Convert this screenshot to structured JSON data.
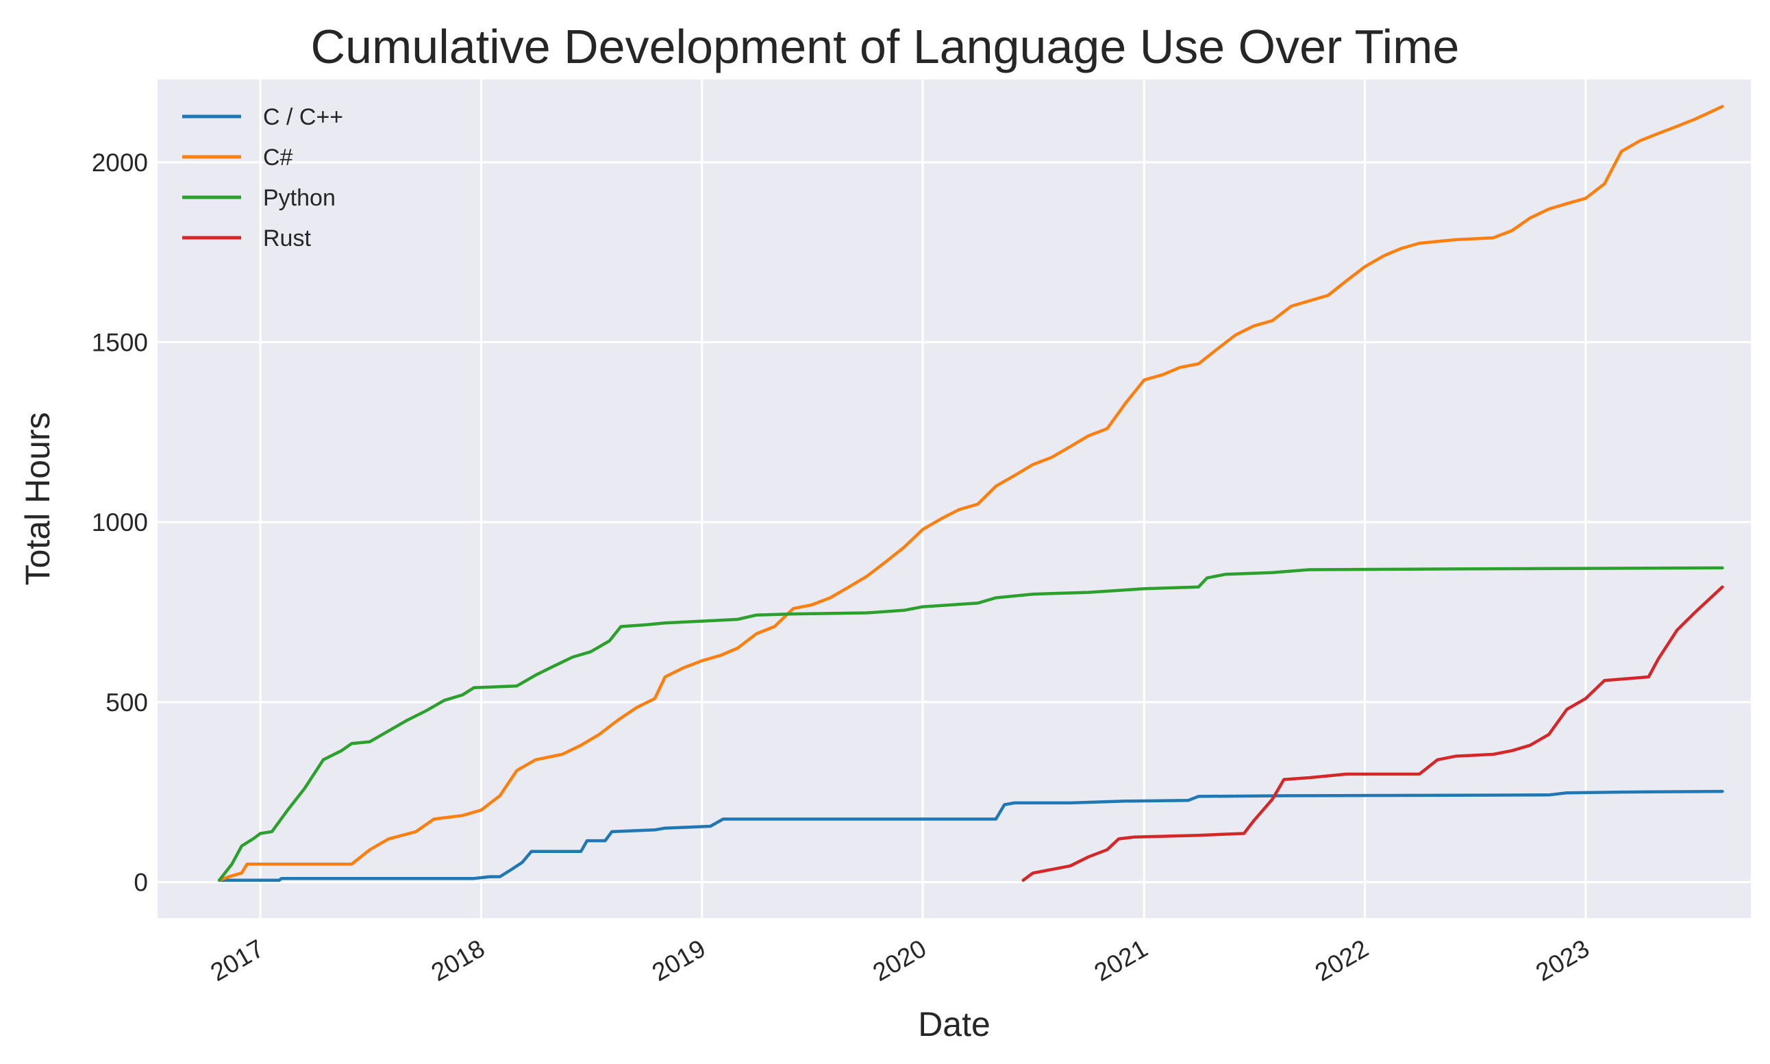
{
  "chart_data": {
    "type": "line",
    "title": "Cumulative Development of Language Use Over Time",
    "xlabel": "Date",
    "ylabel": "Total Hours",
    "xlim": [
      "2016-07-15",
      "2023-10-01"
    ],
    "ylim": [
      -100,
      2230
    ],
    "x_ticks": [
      "2017",
      "2018",
      "2019",
      "2020",
      "2021",
      "2022",
      "2023"
    ],
    "y_ticks": [
      0,
      500,
      1000,
      1500,
      2000
    ],
    "grid": true,
    "legend_position": "top-left",
    "background": "#eaeaf2",
    "series": [
      {
        "name": "C / C++",
        "color": "#1f77b4",
        "points": [
          [
            "2016-10-25",
            5
          ],
          [
            "2017-02-01",
            5
          ],
          [
            "2017-02-05",
            10
          ],
          [
            "2017-12-20",
            10
          ],
          [
            "2018-01-15",
            15
          ],
          [
            "2018-02-01",
            15
          ],
          [
            "2018-02-20",
            35
          ],
          [
            "2018-03-10",
            55
          ],
          [
            "2018-03-25",
            85
          ],
          [
            "2018-06-15",
            85
          ],
          [
            "2018-06-25",
            115
          ],
          [
            "2018-07-25",
            115
          ],
          [
            "2018-08-05",
            140
          ],
          [
            "2018-10-15",
            145
          ],
          [
            "2018-11-01",
            150
          ],
          [
            "2019-01-15",
            155
          ],
          [
            "2019-02-05",
            175
          ],
          [
            "2020-05-01",
            175
          ],
          [
            "2020-05-15",
            215
          ],
          [
            "2020-06-01",
            220
          ],
          [
            "2020-09-01",
            220
          ],
          [
            "2020-12-01",
            225
          ],
          [
            "2021-03-15",
            227
          ],
          [
            "2021-04-01",
            238
          ],
          [
            "2021-09-01",
            240
          ],
          [
            "2022-11-01",
            242
          ],
          [
            "2022-12-01",
            248
          ],
          [
            "2023-03-01",
            250
          ],
          [
            "2023-08-15",
            252
          ]
        ]
      },
      {
        "name": "C#",
        "color": "#ff7f0e",
        "points": [
          [
            "2016-10-25",
            5
          ],
          [
            "2016-11-10",
            15
          ],
          [
            "2016-12-01",
            25
          ],
          [
            "2016-12-10",
            50
          ],
          [
            "2017-06-01",
            50
          ],
          [
            "2017-07-01",
            90
          ],
          [
            "2017-08-01",
            120
          ],
          [
            "2017-09-15",
            140
          ],
          [
            "2017-10-15",
            175
          ],
          [
            "2017-12-01",
            185
          ],
          [
            "2018-01-01",
            200
          ],
          [
            "2018-02-01",
            240
          ],
          [
            "2018-03-01",
            310
          ],
          [
            "2018-04-01",
            340
          ],
          [
            "2018-05-15",
            355
          ],
          [
            "2018-06-15",
            380
          ],
          [
            "2018-07-15",
            410
          ],
          [
            "2018-08-15",
            450
          ],
          [
            "2018-09-15",
            485
          ],
          [
            "2018-10-15",
            510
          ],
          [
            "2018-11-01",
            570
          ],
          [
            "2018-12-01",
            595
          ],
          [
            "2019-01-01",
            615
          ],
          [
            "2019-02-01",
            630
          ],
          [
            "2019-03-01",
            650
          ],
          [
            "2019-04-01",
            690
          ],
          [
            "2019-05-01",
            710
          ],
          [
            "2019-06-01",
            760
          ],
          [
            "2019-07-01",
            770
          ],
          [
            "2019-08-01",
            790
          ],
          [
            "2019-09-01",
            820
          ],
          [
            "2019-10-01",
            850
          ],
          [
            "2019-11-01",
            890
          ],
          [
            "2019-12-01",
            930
          ],
          [
            "2020-01-01",
            980
          ],
          [
            "2020-02-01",
            1010
          ],
          [
            "2020-03-01",
            1035
          ],
          [
            "2020-04-01",
            1050
          ],
          [
            "2020-05-01",
            1100
          ],
          [
            "2020-06-01",
            1130
          ],
          [
            "2020-07-01",
            1160
          ],
          [
            "2020-08-01",
            1180
          ],
          [
            "2020-09-01",
            1210
          ],
          [
            "2020-10-01",
            1240
          ],
          [
            "2020-11-01",
            1260
          ],
          [
            "2020-12-01",
            1330
          ],
          [
            "2021-01-01",
            1395
          ],
          [
            "2021-02-01",
            1410
          ],
          [
            "2021-03-01",
            1430
          ],
          [
            "2021-04-01",
            1440
          ],
          [
            "2021-05-01",
            1480
          ],
          [
            "2021-06-01",
            1520
          ],
          [
            "2021-07-01",
            1545
          ],
          [
            "2021-08-01",
            1560
          ],
          [
            "2021-09-01",
            1600
          ],
          [
            "2021-10-01",
            1615
          ],
          [
            "2021-11-01",
            1630
          ],
          [
            "2021-12-01",
            1670
          ],
          [
            "2022-01-01",
            1710
          ],
          [
            "2022-02-01",
            1740
          ],
          [
            "2022-03-01",
            1760
          ],
          [
            "2022-04-01",
            1775
          ],
          [
            "2022-06-01",
            1785
          ],
          [
            "2022-08-01",
            1790
          ],
          [
            "2022-09-01",
            1810
          ],
          [
            "2022-10-01",
            1845
          ],
          [
            "2022-11-01",
            1870
          ],
          [
            "2022-12-01",
            1885
          ],
          [
            "2023-01-01",
            1900
          ],
          [
            "2023-02-01",
            1940
          ],
          [
            "2023-03-01",
            2030
          ],
          [
            "2023-04-01",
            2060
          ],
          [
            "2023-05-01",
            2080
          ],
          [
            "2023-06-01",
            2100
          ],
          [
            "2023-07-01",
            2120
          ],
          [
            "2023-08-15",
            2155
          ]
        ]
      },
      {
        "name": "Python",
        "color": "#2ca02c",
        "points": [
          [
            "2016-10-25",
            5
          ],
          [
            "2016-11-15",
            50
          ],
          [
            "2016-12-01",
            100
          ],
          [
            "2016-12-20",
            120
          ],
          [
            "2017-01-01",
            135
          ],
          [
            "2017-01-20",
            140
          ],
          [
            "2017-02-15",
            200
          ],
          [
            "2017-03-15",
            260
          ],
          [
            "2017-04-15",
            340
          ],
          [
            "2017-05-15",
            365
          ],
          [
            "2017-06-01",
            385
          ],
          [
            "2017-07-01",
            390
          ],
          [
            "2017-08-01",
            420
          ],
          [
            "2017-09-01",
            450
          ],
          [
            "2017-10-01",
            475
          ],
          [
            "2017-11-01",
            505
          ],
          [
            "2017-12-01",
            520
          ],
          [
            "2017-12-20",
            540
          ],
          [
            "2018-03-01",
            545
          ],
          [
            "2018-04-01",
            575
          ],
          [
            "2018-05-01",
            600
          ],
          [
            "2018-06-01",
            625
          ],
          [
            "2018-07-01",
            640
          ],
          [
            "2018-08-01",
            670
          ],
          [
            "2018-08-20",
            710
          ],
          [
            "2018-10-01",
            715
          ],
          [
            "2018-11-01",
            720
          ],
          [
            "2019-01-01",
            725
          ],
          [
            "2019-03-01",
            730
          ],
          [
            "2019-04-01",
            742
          ],
          [
            "2019-06-01",
            745
          ],
          [
            "2019-10-01",
            748
          ],
          [
            "2019-12-01",
            755
          ],
          [
            "2020-01-01",
            765
          ],
          [
            "2020-04-01",
            775
          ],
          [
            "2020-05-01",
            790
          ],
          [
            "2020-07-01",
            800
          ],
          [
            "2020-10-01",
            805
          ],
          [
            "2021-01-01",
            815
          ],
          [
            "2021-04-01",
            820
          ],
          [
            "2021-04-15",
            845
          ],
          [
            "2021-05-15",
            855
          ],
          [
            "2021-08-01",
            860
          ],
          [
            "2021-10-01",
            868
          ],
          [
            "2022-06-01",
            870
          ],
          [
            "2023-08-15",
            873
          ]
        ]
      },
      {
        "name": "Rust",
        "color": "#d62728",
        "points": [
          [
            "2020-06-15",
            5
          ],
          [
            "2020-07-01",
            25
          ],
          [
            "2020-08-01",
            35
          ],
          [
            "2020-09-01",
            45
          ],
          [
            "2020-10-01",
            70
          ],
          [
            "2020-11-01",
            90
          ],
          [
            "2020-11-20",
            120
          ],
          [
            "2020-12-15",
            125
          ],
          [
            "2021-04-01",
            130
          ],
          [
            "2021-06-15",
            135
          ],
          [
            "2021-07-01",
            170
          ],
          [
            "2021-08-01",
            230
          ],
          [
            "2021-08-20",
            285
          ],
          [
            "2021-10-01",
            290
          ],
          [
            "2021-12-01",
            300
          ],
          [
            "2022-04-01",
            300
          ],
          [
            "2022-05-01",
            340
          ],
          [
            "2022-06-01",
            350
          ],
          [
            "2022-08-01",
            355
          ],
          [
            "2022-09-01",
            365
          ],
          [
            "2022-10-01",
            380
          ],
          [
            "2022-11-01",
            410
          ],
          [
            "2022-12-01",
            480
          ],
          [
            "2023-01-01",
            510
          ],
          [
            "2023-02-01",
            560
          ],
          [
            "2023-04-15",
            570
          ],
          [
            "2023-05-01",
            620
          ],
          [
            "2023-06-01",
            700
          ],
          [
            "2023-07-01",
            750
          ],
          [
            "2023-08-15",
            820
          ]
        ]
      }
    ]
  }
}
